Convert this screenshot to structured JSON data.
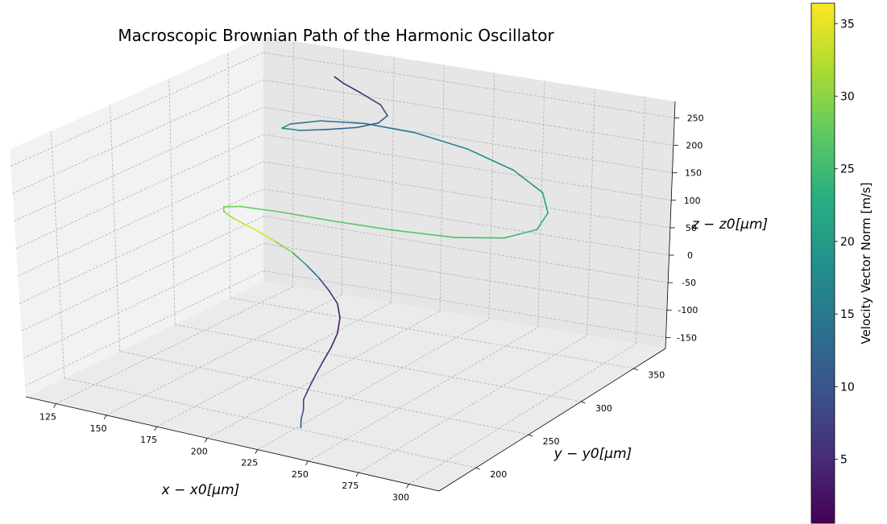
{
  "chart_data": {
    "type": "line3d",
    "title": "Macroscopic Brownian Path of the Harmonic Oscillator",
    "xlabel": "x − x0[μm]",
    "ylabel": "y − y0[μm]",
    "zlabel": "z − z0[μm]",
    "colorbar_label": "Velocity Vector Norm [m/s]",
    "colormap": "viridis",
    "colorbar_range": [
      0.6,
      36.4
    ],
    "colorbar_ticks": [
      "5",
      "10",
      "15",
      "20",
      "25",
      "30",
      "35"
    ],
    "x_ticks": [
      "125",
      "150",
      "175",
      "200",
      "225",
      "250",
      "275",
      "300"
    ],
    "y_ticks": [
      "200",
      "250",
      "300",
      "350"
    ],
    "z_ticks": [
      "-150",
      "-100",
      "-50",
      "0",
      "50",
      "100",
      "150",
      "200",
      "250"
    ],
    "xlim": [
      110,
      315
    ],
    "ylim": [
      165,
      380
    ],
    "zlim": [
      -170,
      280
    ],
    "grid": true,
    "path": {
      "x": [
        240,
        237,
        235,
        232,
        231,
        230,
        229,
        228,
        226,
        222,
        216,
        208,
        200,
        192,
        184,
        176,
        170,
        166,
        164,
        163,
        166,
        176,
        196,
        222,
        250,
        278,
        298,
        308,
        306,
        296,
        275,
        248,
        220,
        195,
        175,
        163,
        160,
        166,
        176,
        188,
        196,
        198,
        192,
        180,
        170,
        164
      ],
      "y": [
        178,
        184,
        190,
        196,
        203,
        211,
        220,
        230,
        240,
        250,
        259,
        266,
        272,
        276,
        278,
        277,
        274,
        269,
        263,
        257,
        252,
        249,
        248,
        249,
        252,
        258,
        266,
        278,
        292,
        306,
        318,
        326,
        330,
        330,
        326,
        320,
        318,
        323,
        329,
        335,
        340,
        345,
        350,
        354,
        357,
        360
      ],
      "z": [
        -130,
        -123,
        -114,
        -103,
        -90,
        -76,
        -61,
        -45,
        -30,
        -15,
        -3,
        8,
        18,
        30,
        45,
        60,
        75,
        90,
        105,
        122,
        138,
        150,
        158,
        162,
        166,
        170,
        178,
        190,
        205,
        220,
        232,
        240,
        242,
        238,
        230,
        220,
        212,
        208,
        212,
        220,
        230,
        240,
        250,
        258,
        264,
        268
      ],
      "speed": [
        11,
        10,
        9,
        8,
        7,
        6,
        5,
        4,
        3.5,
        3.5,
        4,
        6,
        10,
        18,
        26,
        33,
        35,
        34,
        32,
        30,
        29,
        28,
        27,
        27,
        27,
        26,
        25,
        24,
        22,
        21,
        19,
        17,
        16,
        15,
        13,
        17,
        19,
        15,
        13,
        12,
        11,
        10,
        8,
        6,
        5,
        4
      ]
    }
  }
}
